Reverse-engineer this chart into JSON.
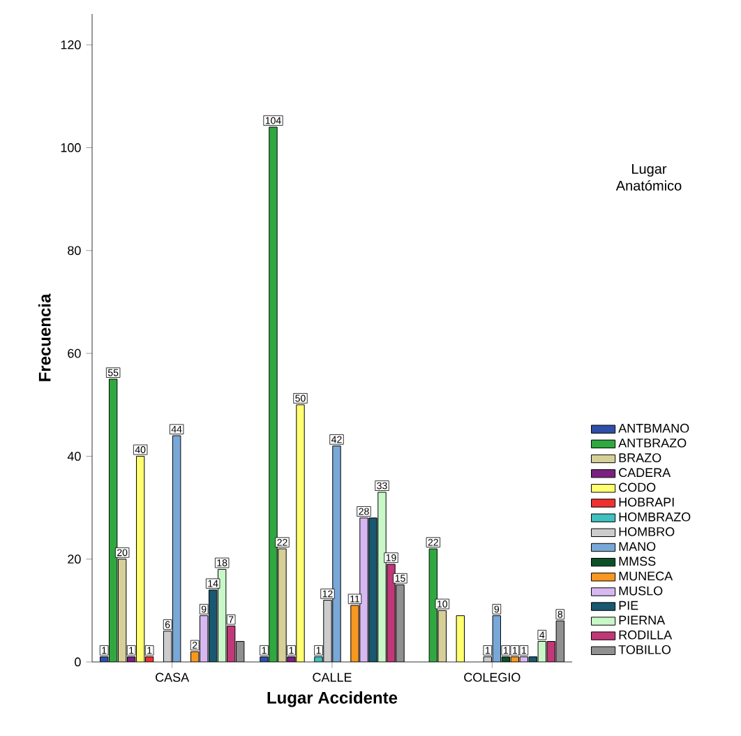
{
  "chart_data": {
    "type": "bar",
    "xlabel": "Lugar Accidente",
    "ylabel": "Frecuencia",
    "legend_title": "Lugar Anatómico",
    "legend": "right",
    "categories": [
      "CASA",
      "CALLE",
      "COLEGIO"
    ],
    "ylim": [
      0,
      126
    ],
    "yticks": [
      0,
      20,
      40,
      60,
      80,
      100,
      120
    ],
    "series": [
      {
        "name": "ANTBMANO",
        "color": "#2f4fa8",
        "values": [
          1,
          1,
          null
        ],
        "value_labels": [
          "1",
          "1",
          null
        ]
      },
      {
        "name": "ANTBRAZO",
        "color": "#30a840",
        "values": [
          55,
          104,
          22
        ],
        "value_labels": [
          "55",
          "104",
          "22"
        ]
      },
      {
        "name": "BRAZO",
        "color": "#d6cf98",
        "values": [
          20,
          22,
          10
        ],
        "value_labels": [
          "20",
          "22",
          "10"
        ]
      },
      {
        "name": "CADERA",
        "color": "#7a2080",
        "values": [
          1,
          1,
          null
        ],
        "value_labels": [
          "1",
          "1",
          null
        ]
      },
      {
        "name": "CODO",
        "color": "#ffff70",
        "values": [
          40,
          50,
          9
        ],
        "value_labels": [
          "40",
          "50",
          null
        ]
      },
      {
        "name": "HOBRAPI",
        "color": "#f03030",
        "values": [
          1,
          null,
          null
        ],
        "value_labels": [
          "1",
          null,
          null
        ]
      },
      {
        "name": "HOMBRAZO",
        "color": "#40c0c0",
        "values": [
          null,
          1,
          null
        ],
        "value_labels": [
          null,
          "1",
          null
        ]
      },
      {
        "name": "HOMBRO",
        "color": "#cccccc",
        "values": [
          6,
          12,
          1
        ],
        "value_labels": [
          "6",
          "12",
          "1"
        ]
      },
      {
        "name": "MANO",
        "color": "#78a8d8",
        "values": [
          44,
          42,
          9
        ],
        "value_labels": [
          "44",
          "42",
          "9"
        ]
      },
      {
        "name": "MMSS",
        "color": "#0c5028",
        "values": [
          null,
          null,
          1
        ],
        "value_labels": [
          null,
          null,
          "1"
        ]
      },
      {
        "name": "MUNECA",
        "color": "#f89820",
        "values": [
          2,
          11,
          1
        ],
        "value_labels": [
          "2",
          "11",
          "1"
        ]
      },
      {
        "name": "MUSLO",
        "color": "#d8b8f0",
        "values": [
          9,
          28,
          1
        ],
        "value_labels": [
          "9",
          "28",
          "1"
        ]
      },
      {
        "name": "PIE",
        "color": "#185870",
        "values": [
          14,
          28,
          1
        ],
        "value_labels": [
          "14",
          null,
          null
        ]
      },
      {
        "name": "PIERNA",
        "color": "#c8f8c8",
        "values": [
          18,
          33,
          4
        ],
        "value_labels": [
          "18",
          "33",
          "4"
        ]
      },
      {
        "name": "RODILLA",
        "color": "#c03878",
        "values": [
          7,
          19,
          4
        ],
        "value_labels": [
          "7",
          "19",
          null
        ]
      },
      {
        "name": "TOBILLO",
        "color": "#909090",
        "values": [
          4,
          15,
          8
        ],
        "value_labels": [
          null,
          "15",
          "8"
        ]
      }
    ]
  }
}
